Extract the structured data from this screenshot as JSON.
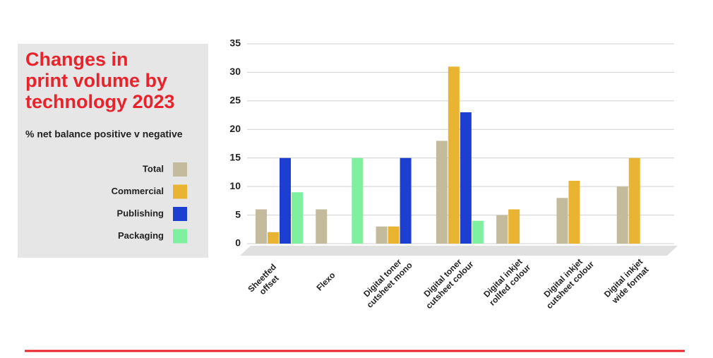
{
  "chart_data": {
    "type": "bar",
    "title": [
      "Changes in",
      "print volume by",
      "technology 2023"
    ],
    "subtitle": "% net balance positive v negative",
    "categories": [
      [
        "Sheetfed",
        "offset"
      ],
      [
        "Flexo"
      ],
      [
        "Digital toner",
        "cutsheet mono"
      ],
      [
        "Digital toner",
        "cutsheet colour"
      ],
      [
        "Digital inkjet",
        "rollfed colour"
      ],
      [
        "Digital inkjet",
        "cutsheet colour"
      ],
      [
        "Digital inkjet",
        "wide format"
      ]
    ],
    "series": [
      {
        "name": "Total",
        "color": "#c3bb9c",
        "values": [
          6,
          6,
          3,
          18,
          5,
          8,
          10
        ]
      },
      {
        "name": "Commercial",
        "color": "#e9b432",
        "values": [
          2,
          null,
          3,
          31,
          6,
          11,
          15
        ]
      },
      {
        "name": "Publishing",
        "color": "#1c3fd1",
        "values": [
          15,
          null,
          15,
          23,
          null,
          null,
          null
        ]
      },
      {
        "name": "Packaging",
        "color": "#7ff0a0",
        "values": [
          9,
          15,
          null,
          4,
          null,
          null,
          null
        ]
      }
    ],
    "ylim": [
      0,
      35
    ],
    "yticks": [
      0,
      5,
      10,
      15,
      20,
      25,
      30,
      35
    ],
    "grid": true
  }
}
